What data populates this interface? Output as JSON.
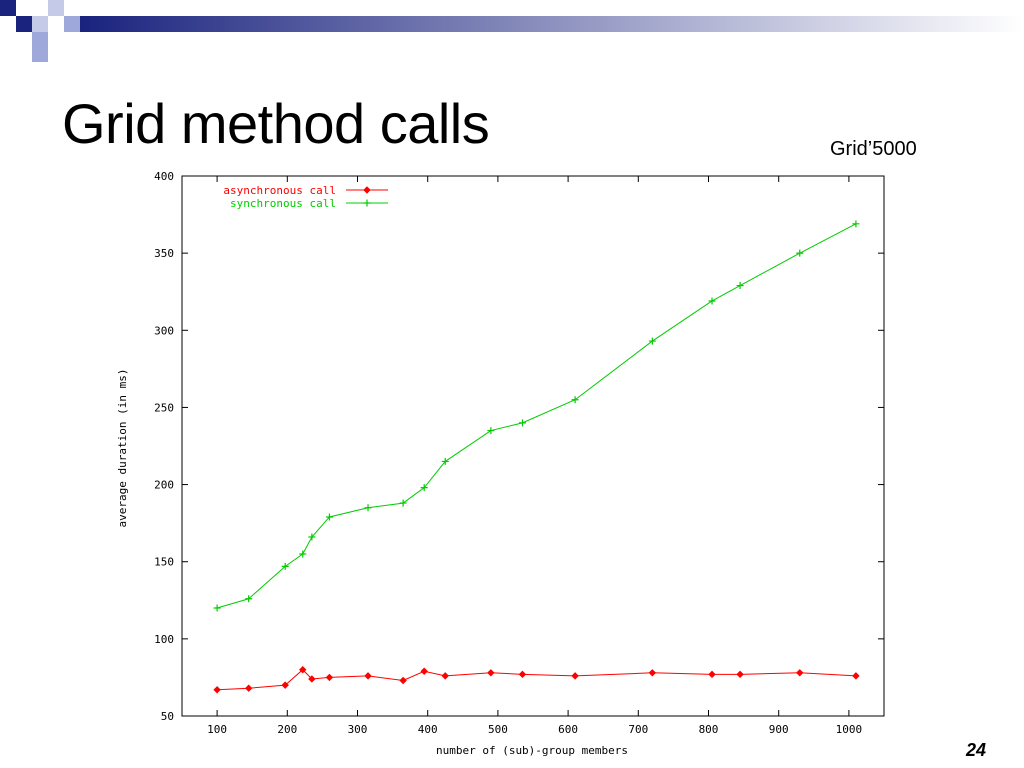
{
  "slide": {
    "title": "Grid method calls",
    "source_label": "Grid’5000",
    "page_number": "24",
    "deco_colors": [
      "#1a237e",
      "#9fa8da",
      "#c5cae9"
    ]
  },
  "chart_data": {
    "type": "line",
    "title": "",
    "xlabel": "number of (sub)-group members",
    "ylabel": "average duration (in ms)",
    "xlim": [
      50,
      1050
    ],
    "ylim": [
      50,
      400
    ],
    "xticks": [
      100,
      200,
      300,
      400,
      500,
      600,
      700,
      800,
      900,
      1000
    ],
    "yticks": [
      50,
      100,
      150,
      200,
      250,
      300,
      350,
      400
    ],
    "grid": false,
    "legend_position": "top-left",
    "series": [
      {
        "name": "asynchronous call",
        "color": "#ff0000",
        "marker": "diamond",
        "x": [
          100,
          145,
          197,
          222,
          235,
          260,
          315,
          365,
          395,
          425,
          490,
          535,
          610,
          720,
          805,
          845,
          930,
          1010
        ],
        "y": [
          67,
          68,
          70,
          80,
          74,
          75,
          76,
          73,
          79,
          76,
          78,
          77,
          76,
          78,
          77,
          77,
          78,
          76
        ]
      },
      {
        "name": "synchronous call",
        "color": "#00cc00",
        "marker": "plus",
        "x": [
          100,
          145,
          197,
          222,
          235,
          260,
          315,
          365,
          395,
          425,
          490,
          535,
          610,
          720,
          805,
          845,
          930,
          1010
        ],
        "y": [
          120,
          126,
          147,
          155,
          166,
          179,
          185,
          188,
          198,
          215,
          235,
          240,
          255,
          293,
          319,
          329,
          350,
          369
        ]
      }
    ]
  }
}
